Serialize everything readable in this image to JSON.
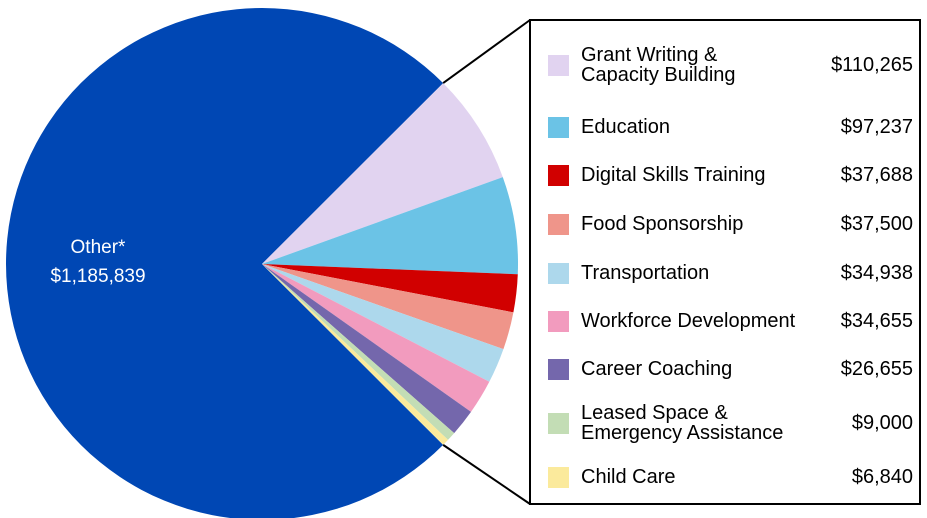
{
  "chart_data": {
    "type": "pie",
    "title": "",
    "slices": [
      {
        "label": "Other*",
        "value": 1185839,
        "value_label": "$1,185,839",
        "color": "#0047B4"
      },
      {
        "label": "Grant Writing &\nCapacity Building",
        "value": 110265,
        "value_label": "$110,265",
        "color": "#E1D3F0"
      },
      {
        "label": "Education",
        "value": 97237,
        "value_label": "$97,237",
        "color": "#6BC3E6"
      },
      {
        "label": "Digital Skills Training",
        "value": 37688,
        "value_label": "$37,688",
        "color": "#D10000"
      },
      {
        "label": "Food Sponsorship",
        "value": 37500,
        "value_label": "$37,500",
        "color": "#EF958A"
      },
      {
        "label": "Transportation",
        "value": 34938,
        "value_label": "$34,938",
        "color": "#ADD8EC"
      },
      {
        "label": "Workforce Development",
        "value": 34655,
        "value_label": "$34,655",
        "color": "#F29BBE"
      },
      {
        "label": "Career Coaching",
        "value": 26655,
        "value_label": "$26,655",
        "color": "#7467AC"
      },
      {
        "label": "Leased Space &\nEmergency Assistance",
        "value": 9000,
        "value_label": "$9,000",
        "color": "#C3DDB5"
      },
      {
        "label": "Child Care",
        "value": 6840,
        "value_label": "$6,840",
        "color": "#FBEA9C"
      }
    ],
    "legend_placement": "right",
    "legend_items": [
      {
        "label": "Grant Writing &\nCapacity Building",
        "value": "$110,265",
        "color": "#E1D3F0"
      },
      {
        "label": "Education",
        "value": "$97,237",
        "color": "#6BC3E6"
      },
      {
        "label": "Digital Skills Training",
        "value": "$37,688",
        "color": "#D10000"
      },
      {
        "label": "Food Sponsorship",
        "value": "$37,500",
        "color": "#EF958A"
      },
      {
        "label": "Transportation",
        "value": "$34,938",
        "color": "#ADD8EC"
      },
      {
        "label": "Workforce Development",
        "value": "$34,655",
        "color": "#F29BBE"
      },
      {
        "label": "Career Coaching",
        "value": "$26,655",
        "color": "#7467AC"
      },
      {
        "label": "Leased Space &\nEmergency Assistance",
        "value": "$9,000",
        "color": "#C3DDB5"
      },
      {
        "label": "Child Care",
        "value": "$6,840",
        "color": "#FBEA9C"
      }
    ],
    "other_label": {
      "name": "Other*",
      "value": "$1,185,839"
    }
  }
}
